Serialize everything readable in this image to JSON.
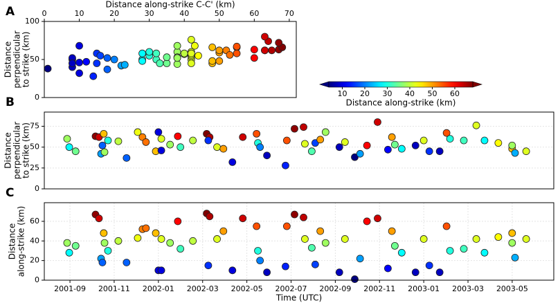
{
  "chart_data": [
    {
      "type": "scatter",
      "panel_label": "A",
      "xlabel": "Distance along-strike C-C' (km)",
      "ylabel_lines": [
        "Distance",
        "perpendicular",
        "to strike (km)"
      ],
      "x_axis": "top",
      "x": [
        38,
        28,
        35,
        67,
        63,
        22,
        18,
        48,
        38,
        30,
        40,
        18,
        43,
        52,
        53,
        48,
        10,
        10,
        42,
        38,
        60,
        32,
        40,
        68,
        65,
        15,
        42,
        50,
        10,
        63,
        55,
        30,
        20,
        8,
        14,
        55,
        67,
        64,
        42,
        33,
        16,
        50,
        38,
        8,
        42,
        1,
        22,
        60,
        63,
        12,
        50,
        35,
        28,
        8,
        42,
        15,
        8,
        55,
        30,
        32,
        42,
        28,
        44,
        48,
        23,
        42,
        38
      ],
      "values": [
        60,
        50,
        45,
        63,
        62,
        42,
        52,
        66,
        44,
        58,
        57,
        37,
        68,
        62,
        56,
        45,
        68,
        46,
        60,
        53,
        63,
        50,
        58,
        66,
        62,
        58,
        50,
        48,
        32,
        62,
        66,
        55,
        50,
        40,
        28,
        58,
        72,
        74,
        54,
        45,
        55,
        59,
        68,
        50,
        56,
        38,
        42,
        52,
        80,
        47,
        62,
        53,
        48,
        52,
        58,
        45,
        45,
        67,
        60,
        58,
        76,
        58,
        55,
        48,
        43,
        45,
        52
      ],
      "color_values": [
        38,
        28,
        35,
        67,
        63,
        22,
        18,
        48,
        38,
        30,
        40,
        18,
        43,
        52,
        53,
        48,
        10,
        10,
        42,
        38,
        60,
        32,
        40,
        68,
        65,
        15,
        42,
        50,
        10,
        63,
        55,
        30,
        20,
        8,
        14,
        55,
        67,
        64,
        42,
        33,
        16,
        50,
        38,
        8,
        42,
        1,
        22,
        60,
        63,
        12,
        50,
        35,
        28,
        8,
        42,
        15,
        8,
        55,
        30,
        32,
        42,
        28,
        44,
        48,
        23,
        42,
        38
      ],
      "xlim": [
        0,
        72
      ],
      "xticks": [
        0,
        10,
        20,
        30,
        40,
        50,
        60,
        70
      ],
      "ylim": [
        0,
        100
      ],
      "yticks": [
        0,
        50,
        100
      ],
      "grid": false,
      "colormap": "jet",
      "clim": [
        4,
        68
      ]
    },
    {
      "type": "scatter",
      "panel_label": "B",
      "ylabel_lines": [
        "Distance",
        "perpendicular",
        "to strike (km)"
      ],
      "x": [
        2001.656,
        2001.664,
        2001.688,
        2001.763,
        2001.776,
        2001.784,
        2001.789,
        2001.794,
        2001.797,
        2001.81,
        2001.849,
        2001.88,
        2001.922,
        2001.94,
        2001.953,
        2001.99,
        2002.0,
        2002.011,
        2002.011,
        2002.044,
        2002.073,
        2002.083,
        2002.13,
        2002.182,
        2002.193,
        2002.188,
        2002.221,
        2002.245,
        2002.279,
        2002.318,
        2002.37,
        2002.375,
        2002.383,
        2002.409,
        2002.479,
        2002.484,
        2002.513,
        2002.547,
        2002.552,
        2002.578,
        2002.591,
        2002.61,
        2002.63,
        2002.682,
        2002.703,
        2002.74,
        2002.76,
        2002.786,
        2002.826,
        2002.865,
        2002.88,
        2002.891,
        2002.917,
        2002.969,
        2003.0,
        2003.021,
        2003.06,
        2003.086,
        2003.099,
        2003.151,
        2003.198,
        2003.229,
        2003.281,
        2003.333,
        2003.344,
        2003.386,
        2003.333
      ],
      "values": [
        60,
        50,
        45,
        63,
        62,
        42,
        52,
        66,
        44,
        58,
        57,
        37,
        68,
        62,
        56,
        45,
        68,
        46,
        60,
        53,
        63,
        50,
        58,
        66,
        62,
        58,
        50,
        48,
        32,
        62,
        66,
        55,
        50,
        40,
        28,
        58,
        72,
        74,
        54,
        45,
        55,
        59,
        68,
        50,
        56,
        38,
        42,
        52,
        80,
        47,
        62,
        53,
        48,
        52,
        58,
        45,
        45,
        67,
        60,
        58,
        76,
        58,
        55,
        48,
        43,
        45,
        52
      ],
      "color_values": [
        38,
        28,
        35,
        67,
        63,
        22,
        18,
        48,
        38,
        30,
        40,
        18,
        43,
        52,
        53,
        48,
        10,
        10,
        42,
        38,
        60,
        32,
        40,
        68,
        65,
        15,
        42,
        50,
        10,
        63,
        55,
        30,
        20,
        8,
        14,
        55,
        67,
        64,
        42,
        33,
        16,
        50,
        38,
        8,
        42,
        1,
        22,
        60,
        63,
        12,
        50,
        35,
        28,
        8,
        42,
        15,
        8,
        55,
        30,
        32,
        42,
        28,
        44,
        48,
        23,
        42,
        38
      ],
      "xlim": [
        2001.57,
        2003.49
      ],
      "ylim": [
        0,
        92
      ],
      "yticks": [
        0,
        25,
        50,
        75
      ],
      "grid": true,
      "colormap": "jet",
      "clim": [
        4,
        68
      ]
    },
    {
      "type": "scatter",
      "panel_label": "C",
      "ylabel_lines": [
        "Distance",
        "along-strike (km)"
      ],
      "xlabel": "Time (UTC)",
      "x": [
        2001.656,
        2001.664,
        2001.688,
        2001.763,
        2001.776,
        2001.784,
        2001.789,
        2001.794,
        2001.797,
        2001.81,
        2001.849,
        2001.88,
        2001.922,
        2001.94,
        2001.953,
        2001.99,
        2002.0,
        2002.011,
        2002.011,
        2002.044,
        2002.073,
        2002.083,
        2002.13,
        2002.182,
        2002.193,
        2002.188,
        2002.221,
        2002.245,
        2002.279,
        2002.318,
        2002.37,
        2002.375,
        2002.383,
        2002.409,
        2002.479,
        2002.484,
        2002.513,
        2002.547,
        2002.552,
        2002.578,
        2002.591,
        2002.61,
        2002.63,
        2002.682,
        2002.703,
        2002.74,
        2002.76,
        2002.786,
        2002.826,
        2002.865,
        2002.88,
        2002.891,
        2002.917,
        2002.969,
        2003.0,
        2003.021,
        2003.06,
        2003.086,
        2003.099,
        2003.151,
        2003.198,
        2003.229,
        2003.281,
        2003.333,
        2003.344,
        2003.386,
        2003.333
      ],
      "values": [
        38,
        28,
        35,
        67,
        63,
        22,
        18,
        48,
        38,
        30,
        40,
        18,
        43,
        52,
        53,
        48,
        10,
        10,
        42,
        38,
        60,
        32,
        40,
        68,
        65,
        15,
        42,
        50,
        10,
        63,
        55,
        30,
        20,
        8,
        14,
        55,
        67,
        64,
        42,
        33,
        16,
        50,
        38,
        8,
        42,
        1,
        22,
        60,
        63,
        12,
        50,
        35,
        28,
        8,
        42,
        15,
        8,
        55,
        30,
        32,
        42,
        28,
        44,
        48,
        23,
        42,
        38
      ],
      "color_values": [
        38,
        28,
        35,
        67,
        63,
        22,
        18,
        48,
        38,
        30,
        40,
        18,
        43,
        52,
        53,
        48,
        10,
        10,
        42,
        38,
        60,
        32,
        40,
        68,
        65,
        15,
        42,
        50,
        10,
        63,
        55,
        30,
        20,
        8,
        14,
        55,
        67,
        64,
        42,
        33,
        16,
        50,
        38,
        8,
        42,
        1,
        22,
        60,
        63,
        12,
        50,
        35,
        28,
        8,
        42,
        15,
        8,
        55,
        30,
        32,
        42,
        28,
        44,
        48,
        23,
        42,
        38
      ],
      "xlim": [
        2001.57,
        2003.49
      ],
      "xticks": [
        {
          "value": 2001.6667,
          "label": "2001-09"
        },
        {
          "value": 2001.8333,
          "label": "2001-11"
        },
        {
          "value": 2002.0,
          "label": "2002-01"
        },
        {
          "value": 2002.1667,
          "label": "2002-03"
        },
        {
          "value": 2002.3333,
          "label": "2002-05"
        },
        {
          "value": 2002.5,
          "label": "2002-07"
        },
        {
          "value": 2002.6667,
          "label": "2002-09"
        },
        {
          "value": 2002.8333,
          "label": "2002-11"
        },
        {
          "value": 2003.0,
          "label": "2003-01"
        },
        {
          "value": 2003.1667,
          "label": "2003-03"
        },
        {
          "value": 2003.3333,
          "label": "2003-05"
        }
      ],
      "ylim": [
        0,
        79
      ],
      "yticks": [
        0,
        20,
        40,
        60
      ],
      "grid": true,
      "colormap": "jet",
      "clim": [
        4,
        68
      ]
    }
  ],
  "colorbar": {
    "label": "Distance along-strike (km)",
    "ticks": [
      10,
      20,
      30,
      40,
      50,
      60
    ],
    "clim": [
      4,
      68
    ],
    "colormap": "jet"
  }
}
